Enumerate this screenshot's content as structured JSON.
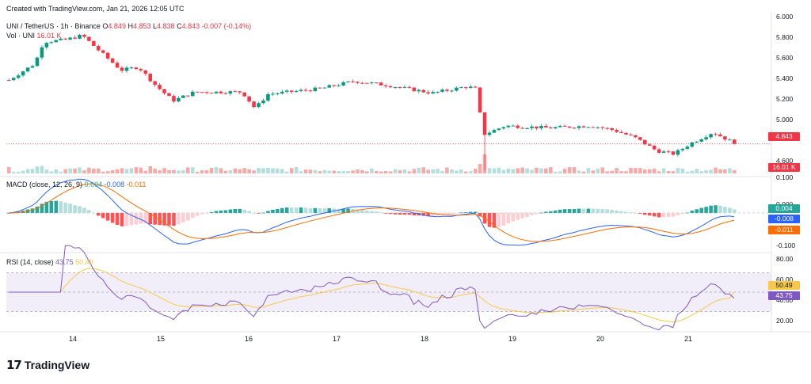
{
  "header": {
    "created": "Created with TradingView.com, Jan 21, 2026 12:05 UTC",
    "symbol": "UNI / TetherUS · 1h · Binance",
    "o_label": "O",
    "o_value": "4.849",
    "h_label": "H",
    "h_value": "4.853",
    "l_label": "L",
    "l_value": "4.838",
    "c_label": "C",
    "c_value": "4.843",
    "change": "-0.007 (-0.14%)",
    "vol_label": "Vol · UNI",
    "vol_value": "16.01 K"
  },
  "macd_header": {
    "label": "MACD (close, 12, 26, 9)",
    "hist": "0.004",
    "macd": "-0.008",
    "signal": "-0.011"
  },
  "rsi_header": {
    "label": "RSI (14, close)",
    "rsi": "43.75",
    "ma": "50.49"
  },
  "price_axis": [
    "6.000",
    "5.800",
    "5.600",
    "5.400",
    "5.200",
    "5.000",
    "4.600"
  ],
  "price_tags": {
    "last": "4.843",
    "volume": "16.01 K"
  },
  "macd_axis": [
    "0.100",
    "0.000",
    "-0.100"
  ],
  "macd_tags": {
    "hist": "0.004",
    "macd": "-0.008",
    "signal": "-0.011"
  },
  "rsi_axis": [
    "80.00",
    "60.00",
    "40.00",
    "20.00"
  ],
  "rsi_tags": {
    "ma": "50.49",
    "rsi": "43.75"
  },
  "x_axis": [
    "14",
    "15",
    "16",
    "17",
    "18",
    "19",
    "20",
    "21"
  ],
  "brand": {
    "name": "TradingView",
    "mark": "17"
  },
  "colors": {
    "up": "#089981",
    "down": "#f23645",
    "macd": "#2962ff",
    "signal": "#ff6d00",
    "rsi": "#7e57c2",
    "rsi_ma": "#f7c948"
  },
  "chart_data": {
    "type": "candlestick",
    "title": "UNI / TetherUS · 1h · Binance",
    "x_categories": [
      "14",
      "15",
      "16",
      "17",
      "18",
      "19",
      "20",
      "21"
    ],
    "price_key_points": [
      {
        "t": 0.0,
        "close": 5.43
      },
      {
        "t": 0.6,
        "close": 5.58
      },
      {
        "t": 0.8,
        "close": 5.78
      },
      {
        "t": 1.3,
        "close": 5.8
      },
      {
        "t": 1.7,
        "close": 5.84
      },
      {
        "t": 2.2,
        "close": 5.66
      },
      {
        "t": 2.6,
        "close": 5.52
      },
      {
        "t": 3.0,
        "close": 5.55
      },
      {
        "t": 3.4,
        "close": 5.38
      },
      {
        "t": 3.8,
        "close": 5.24
      },
      {
        "t": 4.3,
        "close": 5.32
      },
      {
        "t": 5.4,
        "close": 5.32
      },
      {
        "t": 5.7,
        "close": 5.17
      },
      {
        "t": 6.0,
        "close": 5.3
      },
      {
        "t": 7.2,
        "close": 5.35
      },
      {
        "t": 8.0,
        "close": 5.42
      },
      {
        "t": 8.8,
        "close": 5.38
      },
      {
        "t": 9.8,
        "close": 5.31
      },
      {
        "t": 10.6,
        "close": 5.37
      },
      {
        "t": 10.8,
        "close": 5.35
      },
      {
        "t": 11.0,
        "close": 4.93
      },
      {
        "t": 11.5,
        "close": 5.01
      },
      {
        "t": 12.5,
        "close": 4.99
      },
      {
        "t": 13.5,
        "close": 5.01
      },
      {
        "t": 14.0,
        "close": 4.97
      },
      {
        "t": 14.5,
        "close": 4.9
      },
      {
        "t": 15.0,
        "close": 4.78
      },
      {
        "t": 15.4,
        "close": 4.75
      },
      {
        "t": 15.8,
        "close": 4.85
      },
      {
        "t": 16.3,
        "close": 4.95
      },
      {
        "t": 16.8,
        "close": 4.85
      }
    ],
    "price_range": [
      4.55,
      6.02
    ],
    "last_close": 4.843,
    "macd": {
      "params": [
        12,
        26,
        9
      ],
      "histogram": 0.004,
      "macd": -0.008,
      "signal": -0.011,
      "range": [
        -0.12,
        0.11
      ]
    },
    "rsi": {
      "period": 14,
      "value": 43.75,
      "ma": 50.49,
      "upper": 70,
      "middle": 50,
      "lower": 30,
      "range": [
        10,
        90
      ]
    }
  }
}
